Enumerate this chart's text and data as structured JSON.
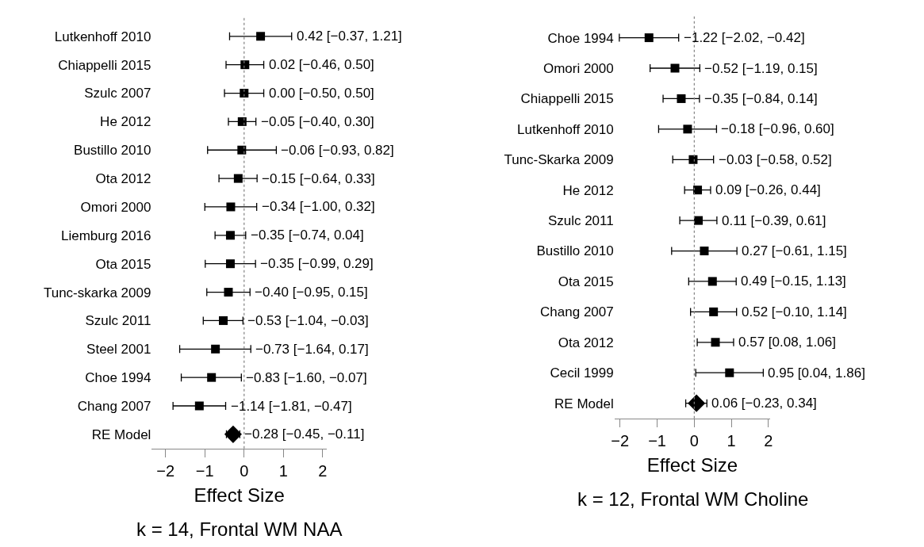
{
  "chart_data": [
    {
      "type": "scatter",
      "orientation": "horizontal",
      "xlabel": "Effect Size",
      "annotations": [
        "k = 14, Frontal WM NAA"
      ],
      "xlim": [
        -2.35,
        2.1
      ],
      "xticks": [
        -2,
        -1,
        0,
        1,
        2
      ],
      "ref_lines": [
        {
          "axis": "x",
          "value": 0,
          "line_style": "dotted",
          "color": "#808080"
        }
      ],
      "categories": [
        "Lutkenhoff 2010",
        "Chiappelli 2015",
        "Szulc 2007",
        "He 2012",
        "Bustillo 2010",
        "Ota 2012",
        "Omori 2000",
        "Liemburg 2016",
        "Ota 2015",
        "Tunc-skarka 2009",
        "Szulc 2011",
        "Steel 2001",
        "Choe 1994",
        "Chang 2007",
        "RE Model"
      ],
      "series": [
        {
          "color": "#000000",
          "marker": "square",
          "values": [
            0.42,
            0.02,
            0.0,
            -0.05,
            -0.06,
            -0.15,
            -0.34,
            -0.35,
            -0.35,
            -0.4,
            -0.53,
            -0.73,
            -0.83,
            -1.14,
            null
          ],
          "errors": [
            [
              -0.37,
              1.21
            ],
            [
              -0.46,
              0.5
            ],
            [
              -0.5,
              0.5
            ],
            [
              -0.4,
              0.3
            ],
            [
              -0.93,
              0.82
            ],
            [
              -0.64,
              0.33
            ],
            [
              -1.0,
              0.32
            ],
            [
              -0.74,
              0.04
            ],
            [
              -0.99,
              0.29
            ],
            [
              -0.95,
              0.15
            ],
            [
              -1.04,
              -0.03
            ],
            [
              -1.64,
              0.17
            ],
            [
              -1.6,
              -0.07
            ],
            [
              -1.81,
              -0.47
            ],
            null
          ],
          "value_labels": [
            "0.42 [−0.37, 1.21]",
            "0.02 [−0.46, 0.50]",
            "0.00 [−0.50, 0.50]",
            "−0.05 [−0.40, 0.30]",
            "−0.06 [−0.93, 0.82]",
            "−0.15 [−0.64, 0.33]",
            "−0.34 [−1.00, 0.32]",
            "−0.35 [−0.74, 0.04]",
            "−0.35 [−0.99, 0.29]",
            "−0.40 [−0.95, 0.15]",
            "−0.53 [−1.04, −0.03]",
            "−0.73 [−1.64, 0.17]",
            "−0.83 [−1.60, −0.07]",
            "−1.14 [−1.81, −0.47]",
            null
          ]
        },
        {
          "color": "#000000",
          "marker": "diamond",
          "values": [
            null,
            null,
            null,
            null,
            null,
            null,
            null,
            null,
            null,
            null,
            null,
            null,
            null,
            null,
            -0.28
          ],
          "errors": [
            null,
            null,
            null,
            null,
            null,
            null,
            null,
            null,
            null,
            null,
            null,
            null,
            null,
            null,
            [
              -0.45,
              -0.11
            ]
          ],
          "value_labels": [
            null,
            null,
            null,
            null,
            null,
            null,
            null,
            null,
            null,
            null,
            null,
            null,
            null,
            null,
            "−0.28 [−0.45, −0.11]"
          ]
        }
      ]
    },
    {
      "type": "scatter",
      "orientation": "horizontal",
      "xlabel": "Effect Size",
      "annotations": [
        "k = 12, Frontal WM Choline"
      ],
      "xlim": [
        -2.15,
        2.05
      ],
      "xticks": [
        -2,
        -1,
        0,
        1,
        2
      ],
      "ref_lines": [
        {
          "axis": "x",
          "value": 0,
          "line_style": "dotted",
          "color": "#808080"
        }
      ],
      "categories": [
        "Choe 1994",
        "Omori 2000",
        "Chiappelli 2015",
        "Lutkenhoff 2010",
        "Tunc-Skarka 2009",
        "He 2012",
        "Szulc 2011",
        "Bustillo 2010",
        "Ota 2015",
        "Chang 2007",
        "Ota 2012",
        "Cecil 1999",
        "RE Model"
      ],
      "series": [
        {
          "color": "#000000",
          "marker": "square",
          "values": [
            -1.22,
            -0.52,
            -0.35,
            -0.18,
            -0.03,
            0.09,
            0.11,
            0.27,
            0.49,
            0.52,
            0.57,
            0.95,
            null
          ],
          "errors": [
            [
              -2.02,
              -0.42
            ],
            [
              -1.19,
              0.15
            ],
            [
              -0.84,
              0.14
            ],
            [
              -0.96,
              0.6
            ],
            [
              -0.58,
              0.52
            ],
            [
              -0.26,
              0.44
            ],
            [
              -0.39,
              0.61
            ],
            [
              -0.61,
              1.15
            ],
            [
              -0.15,
              1.13
            ],
            [
              -0.1,
              1.14
            ],
            [
              0.08,
              1.06
            ],
            [
              0.04,
              1.86
            ],
            null
          ],
          "value_labels": [
            "−1.22 [−2.02, −0.42]",
            "−0.52 [−1.19, 0.15]",
            "−0.35 [−0.84, 0.14]",
            "−0.18 [−0.96, 0.60]",
            "−0.03 [−0.58, 0.52]",
            "0.09 [−0.26, 0.44]",
            "0.11 [−0.39, 0.61]",
            "0.27 [−0.61, 1.15]",
            "0.49 [−0.15, 1.13]",
            "0.52 [−0.10, 1.14]",
            "0.57 [0.08, 1.06]",
            "0.95 [0.04, 1.86]",
            null
          ]
        },
        {
          "color": "#000000",
          "marker": "diamond",
          "values": [
            null,
            null,
            null,
            null,
            null,
            null,
            null,
            null,
            null,
            null,
            null,
            null,
            0.06
          ],
          "errors": [
            null,
            null,
            null,
            null,
            null,
            null,
            null,
            null,
            null,
            null,
            null,
            null,
            [
              -0.23,
              0.34
            ]
          ],
          "value_labels": [
            null,
            null,
            null,
            null,
            null,
            null,
            null,
            null,
            null,
            null,
            null,
            null,
            "0.06 [−0.23, 0.34]"
          ]
        }
      ]
    }
  ]
}
